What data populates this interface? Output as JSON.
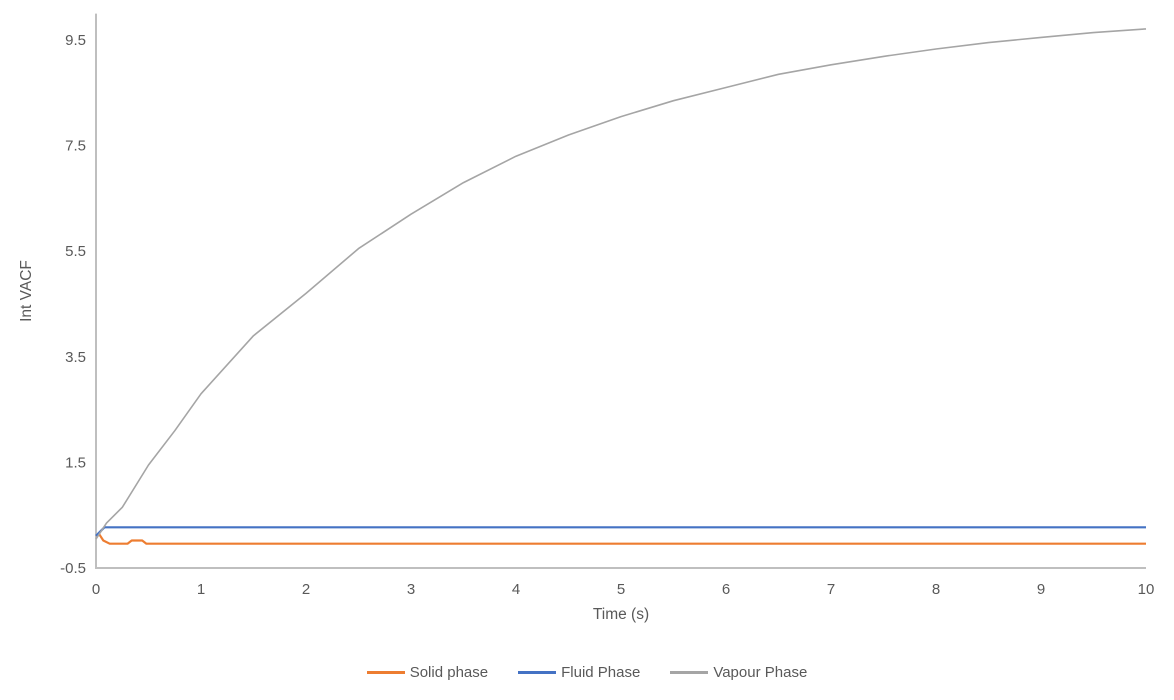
{
  "chart_data": {
    "type": "line",
    "title": "",
    "xlabel": "Time (s)",
    "ylabel": "Int VACF",
    "xlim": [
      0,
      10
    ],
    "ylim": [
      -0.5,
      10
    ],
    "x_ticks": [
      0,
      1,
      2,
      3,
      4,
      5,
      6,
      7,
      8,
      9,
      10
    ],
    "y_ticks": [
      -0.5,
      1.5,
      3.5,
      5.5,
      7.5,
      9.5
    ],
    "grid": false,
    "legend_position": "bottom",
    "series": [
      {
        "name": "Solid phase",
        "color": "#ED7D31",
        "points": [
          [
            0,
            0.11
          ],
          [
            0.03,
            0.14
          ],
          [
            0.07,
            0.02
          ],
          [
            0.13,
            -0.04
          ],
          [
            0.3,
            -0.04
          ],
          [
            0.34,
            0.02
          ],
          [
            0.44,
            0.02
          ],
          [
            0.48,
            -0.04
          ],
          [
            10,
            -0.04
          ]
        ]
      },
      {
        "name": "Fluid Phase",
        "color": "#4472C4",
        "points": [
          [
            0,
            0.11
          ],
          [
            0.08,
            0.27
          ],
          [
            10,
            0.27
          ]
        ]
      },
      {
        "name": "Vapour Phase",
        "color": "#A5A5A5",
        "points": [
          [
            0,
            0.05
          ],
          [
            0.1,
            0.35
          ],
          [
            0.25,
            0.65
          ],
          [
            0.5,
            1.45
          ],
          [
            0.75,
            2.1
          ],
          [
            1,
            2.8
          ],
          [
            1.5,
            3.9
          ],
          [
            2,
            4.7
          ],
          [
            2.5,
            5.55
          ],
          [
            3,
            6.2
          ],
          [
            3.5,
            6.8
          ],
          [
            4,
            7.3
          ],
          [
            4.5,
            7.7
          ],
          [
            5,
            8.05
          ],
          [
            5.5,
            8.35
          ],
          [
            6,
            8.6
          ],
          [
            6.5,
            8.85
          ],
          [
            7,
            9.03
          ],
          [
            7.5,
            9.19
          ],
          [
            8,
            9.33
          ],
          [
            8.5,
            9.45
          ],
          [
            9,
            9.55
          ],
          [
            9.5,
            9.64
          ],
          [
            10,
            9.71
          ]
        ]
      }
    ]
  },
  "axes": {
    "x_title": "Time (s)",
    "y_title": "Int VACF",
    "x_tick_labels": [
      "0",
      "1",
      "2",
      "3",
      "4",
      "5",
      "6",
      "7",
      "8",
      "9",
      "10"
    ],
    "y_tick_labels": [
      "-0.5",
      "1.5",
      "3.5",
      "5.5",
      "7.5",
      "9.5"
    ]
  },
  "legend": {
    "items": [
      {
        "label": "Solid phase",
        "color": "#ED7D31"
      },
      {
        "label": "Fluid Phase",
        "color": "#4472C4"
      },
      {
        "label": "Vapour Phase",
        "color": "#A5A5A5"
      }
    ]
  },
  "colors": {
    "axis_line": "#BFBFBF",
    "tick_label": "#595959",
    "background": "#FFFFFF"
  }
}
